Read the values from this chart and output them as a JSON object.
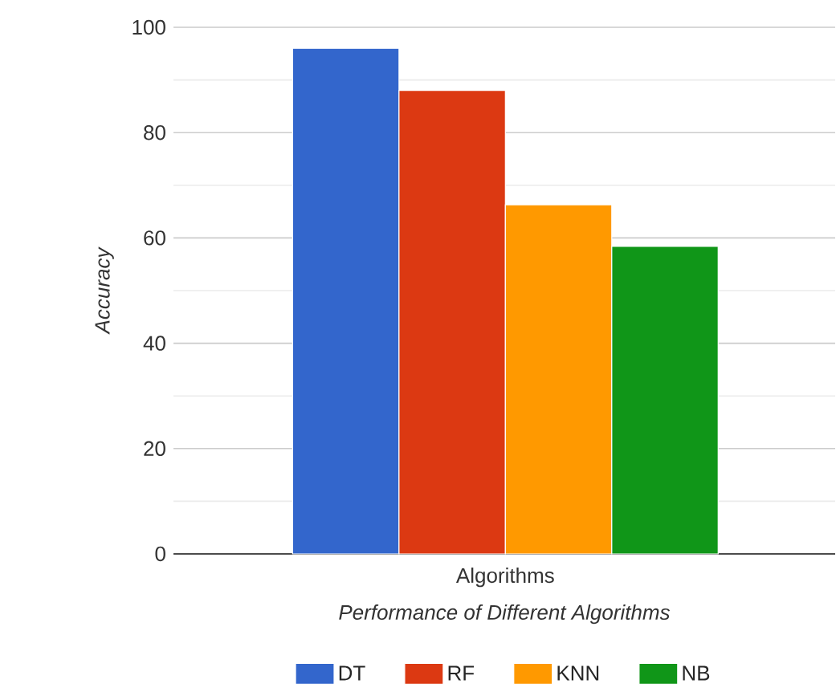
{
  "chart_data": {
    "type": "bar",
    "xlabel": "Performance of Different Algorithms",
    "ylabel": "Accuracy",
    "categories": [
      "Algorithms"
    ],
    "series": [
      {
        "name": "DT",
        "color": "#3366cc",
        "values": [
          96
        ]
      },
      {
        "name": "RF",
        "color": "#dc3912",
        "values": [
          88
        ]
      },
      {
        "name": "KNN",
        "color": "#ff9900",
        "values": [
          66.3
        ]
      },
      {
        "name": "NB",
        "color": "#109618",
        "values": [
          58.4
        ]
      }
    ],
    "ylim": [
      0,
      100
    ],
    "yticks": [
      0,
      {
        "value": 10,
        "label": null
      },
      20,
      {
        "value": 30,
        "label": null
      },
      40,
      {
        "value": 50,
        "label": null
      },
      60,
      {
        "value": 70,
        "label": null
      },
      80,
      {
        "value": 90,
        "label": null
      },
      100
    ],
    "grid": true,
    "legend": "bottom"
  }
}
